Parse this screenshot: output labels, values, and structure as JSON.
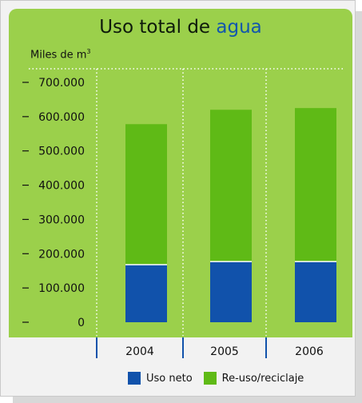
{
  "chart_data": {
    "type": "bar",
    "stacked": true,
    "title_prefix": "Uso total de ",
    "title_accent": "agua",
    "ylabel_text": "Miles de m",
    "ylabel_sup": "3",
    "categories": [
      "2004",
      "2005",
      "2006"
    ],
    "series": [
      {
        "name": "Uso neto",
        "values": [
          168000,
          177000,
          177000
        ],
        "color": "#1152ab"
      },
      {
        "name": "Re-uso/reciclaje",
        "values": [
          410000,
          443000,
          448000
        ],
        "color": "#5fba16"
      }
    ],
    "ylim": [
      0,
      700000
    ],
    "yticks": [
      {
        "value": 0,
        "label": "0"
      },
      {
        "value": 100000,
        "label": "100.000"
      },
      {
        "value": 200000,
        "label": "200.000"
      },
      {
        "value": 300000,
        "label": "300.000"
      },
      {
        "value": 400000,
        "label": "400.000"
      },
      {
        "value": 500000,
        "label": "500.000"
      },
      {
        "value": 600000,
        "label": "600.000"
      },
      {
        "value": 700000,
        "label": "700.000"
      }
    ],
    "legend_position": "bottom",
    "colors": {
      "panel_bg": "#9bd04b",
      "accent": "#1256ad"
    }
  }
}
